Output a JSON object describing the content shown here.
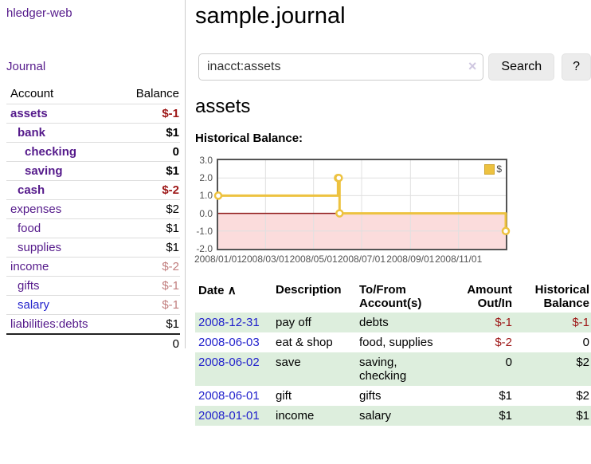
{
  "colors": {
    "accent_purple": "#551a8b",
    "link_blue": "#2222cc",
    "negative_strong": "#9d1616",
    "negative_soft": "#c17d7d",
    "row_green": "#ddeedd",
    "series_yellow": "#edc240",
    "zero_line": "#8e1616",
    "negative_region": "#fbdcdc",
    "grid": "#e0e0e0",
    "plot_border": "#545454"
  },
  "sidebar": {
    "app_title": "hledger-web",
    "journal_link": "Journal",
    "table": {
      "account_header": "Account",
      "balance_header": "Balance",
      "rows": [
        {
          "account": "assets",
          "balance": "$-1",
          "level": 1,
          "bold": true,
          "balance_color": "negative-strong",
          "link_color": "purple"
        },
        {
          "account": "bank",
          "balance": "$1",
          "level": 2,
          "bold": true,
          "balance_color": "",
          "link_color": "purple"
        },
        {
          "account": "checking",
          "balance": "0",
          "level": 3,
          "bold": true,
          "balance_color": "",
          "link_color": "purple"
        },
        {
          "account": "saving",
          "balance": "$1",
          "level": 3,
          "bold": true,
          "balance_color": "",
          "link_color": "purple"
        },
        {
          "account": "cash",
          "balance": "$-2",
          "level": 2,
          "bold": true,
          "balance_color": "negative-strong",
          "link_color": "purple"
        },
        {
          "account": "expenses",
          "balance": "$2",
          "level": 1,
          "bold": false,
          "balance_color": "",
          "link_color": "purple"
        },
        {
          "account": "food",
          "balance": "$1",
          "level": 2,
          "bold": false,
          "balance_color": "",
          "link_color": "purple"
        },
        {
          "account": "supplies",
          "balance": "$1",
          "level": 2,
          "bold": false,
          "balance_color": "",
          "link_color": "purple"
        },
        {
          "account": "income",
          "balance": "$-2",
          "level": 1,
          "bold": false,
          "balance_color": "negative-soft",
          "link_color": "purple"
        },
        {
          "account": "gifts",
          "balance": "$-1",
          "level": 2,
          "bold": false,
          "balance_color": "negative-soft",
          "link_color": "purple"
        },
        {
          "account": "salary",
          "balance": "$-1",
          "level": 2,
          "bold": false,
          "balance_color": "negative-soft",
          "link_color": "blue"
        },
        {
          "account": "liabilities:debts",
          "balance": "$1",
          "level": 1,
          "bold": false,
          "balance_color": "",
          "link_color": "purple"
        }
      ],
      "total": "0"
    }
  },
  "header": {
    "title": "sample.journal"
  },
  "search": {
    "value": "inacct:assets",
    "clear_icon": "×",
    "button_label": "Search",
    "help_label": "?"
  },
  "account_page": {
    "title": "assets",
    "chart_label": "Historical Balance:"
  },
  "chart_data": {
    "type": "line",
    "title": "Historical Balance:",
    "x_range": [
      "2008-01-01",
      "2008-12-31"
    ],
    "ylim": [
      -2,
      3
    ],
    "grid": true,
    "legend_position": "top-right",
    "series": [
      {
        "name": "$",
        "color": "#edc240",
        "step": true,
        "points": [
          [
            "2008-01-01",
            1
          ],
          [
            "2008-06-01",
            2
          ],
          [
            "2008-06-02",
            2
          ],
          [
            "2008-06-03",
            0
          ],
          [
            "2008-12-31",
            -1
          ]
        ]
      }
    ],
    "y_ticks": [
      {
        "label": "3.0",
        "value": 3
      },
      {
        "label": "2.0",
        "value": 2
      },
      {
        "label": "1.0",
        "value": 1
      },
      {
        "label": "0.0",
        "value": 0
      },
      {
        "label": "-1.0",
        "value": -1
      },
      {
        "label": "-2.0",
        "value": -2
      }
    ],
    "x_ticks": [
      {
        "label": "2008/01/01",
        "date": "2008-01-01"
      },
      {
        "label": "2008/03/01",
        "date": "2008-03-01"
      },
      {
        "label": "2008/05/01",
        "date": "2008-05-01"
      },
      {
        "label": "2008/07/01",
        "date": "2008-07-01"
      },
      {
        "label": "2008/09/01",
        "date": "2008-09-01"
      },
      {
        "label": "2008/11/01",
        "date": "2008-11-01"
      }
    ],
    "zero_line_color": "#8e1616",
    "negative_fill": "#fbdcdc"
  },
  "transactions": {
    "sort_arrow": "∧",
    "headers": {
      "date": "Date",
      "description": "Description",
      "accounts": "To/From Account(s)",
      "amount": "Amount Out/In",
      "balance": "Historical Balance"
    },
    "rows": [
      {
        "date": "2008-12-31",
        "description": "pay off",
        "accounts": "debts",
        "amount": "$-1",
        "amount_negative": true,
        "balance": "$-1",
        "balance_negative": true
      },
      {
        "date": "2008-06-03",
        "description": "eat & shop",
        "accounts": "food, supplies",
        "amount": "$-2",
        "amount_negative": true,
        "balance": "0",
        "balance_negative": false
      },
      {
        "date": "2008-06-02",
        "description": "save",
        "accounts": "saving, checking",
        "amount": "0",
        "amount_negative": false,
        "balance": "$2",
        "balance_negative": false
      },
      {
        "date": "2008-06-01",
        "description": "gift",
        "accounts": "gifts",
        "amount": "$1",
        "amount_negative": false,
        "balance": "$2",
        "balance_negative": false
      },
      {
        "date": "2008-01-01",
        "description": "income",
        "accounts": "salary",
        "amount": "$1",
        "amount_negative": false,
        "balance": "$1",
        "balance_negative": false
      }
    ]
  }
}
